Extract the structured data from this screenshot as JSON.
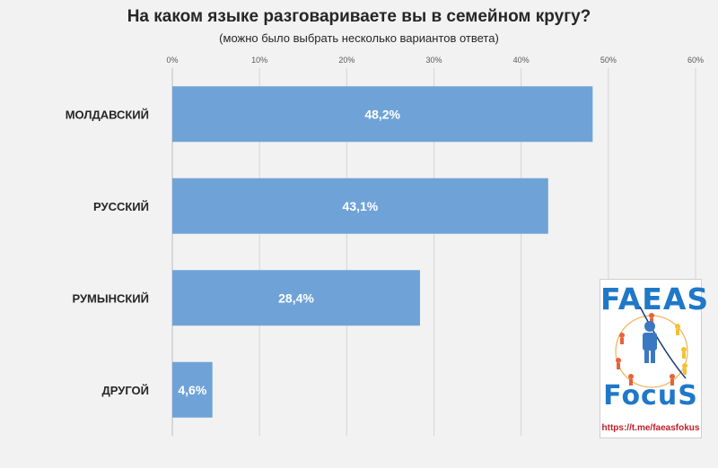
{
  "chart_data": {
    "type": "bar",
    "orientation": "horizontal",
    "title": "На каком языке разговариваете вы в семейном кругу?",
    "subtitle": "(можно было выбрать несколько вариантов ответа)",
    "categories": [
      "МОЛДАВСКИЙ",
      "РУССКИЙ",
      "РУМЫНСКИЙ",
      "ДРУГОЙ"
    ],
    "values": [
      48.2,
      43.1,
      28.4,
      4.6
    ],
    "data_labels": [
      "48,2%",
      "43,1%",
      "28,4%",
      "4,6%"
    ],
    "x_ticks": [
      0,
      10,
      20,
      30,
      40,
      50,
      60
    ],
    "x_tick_labels": [
      "0%",
      "10%",
      "20%",
      "30%",
      "40%",
      "50%",
      "60%"
    ],
    "xlim": [
      0,
      60
    ],
    "x_axis_position": "top",
    "grid": true,
    "legend": false,
    "bar_color": "#6fa3d8",
    "label_color": "#ffffff"
  },
  "logo": {
    "top_text": "FAEAS",
    "bottom_text": "FocuS",
    "link": "https://t.me/faeasfokus",
    "colors": {
      "text": "#1f78c8",
      "link": "#c0202a"
    }
  }
}
